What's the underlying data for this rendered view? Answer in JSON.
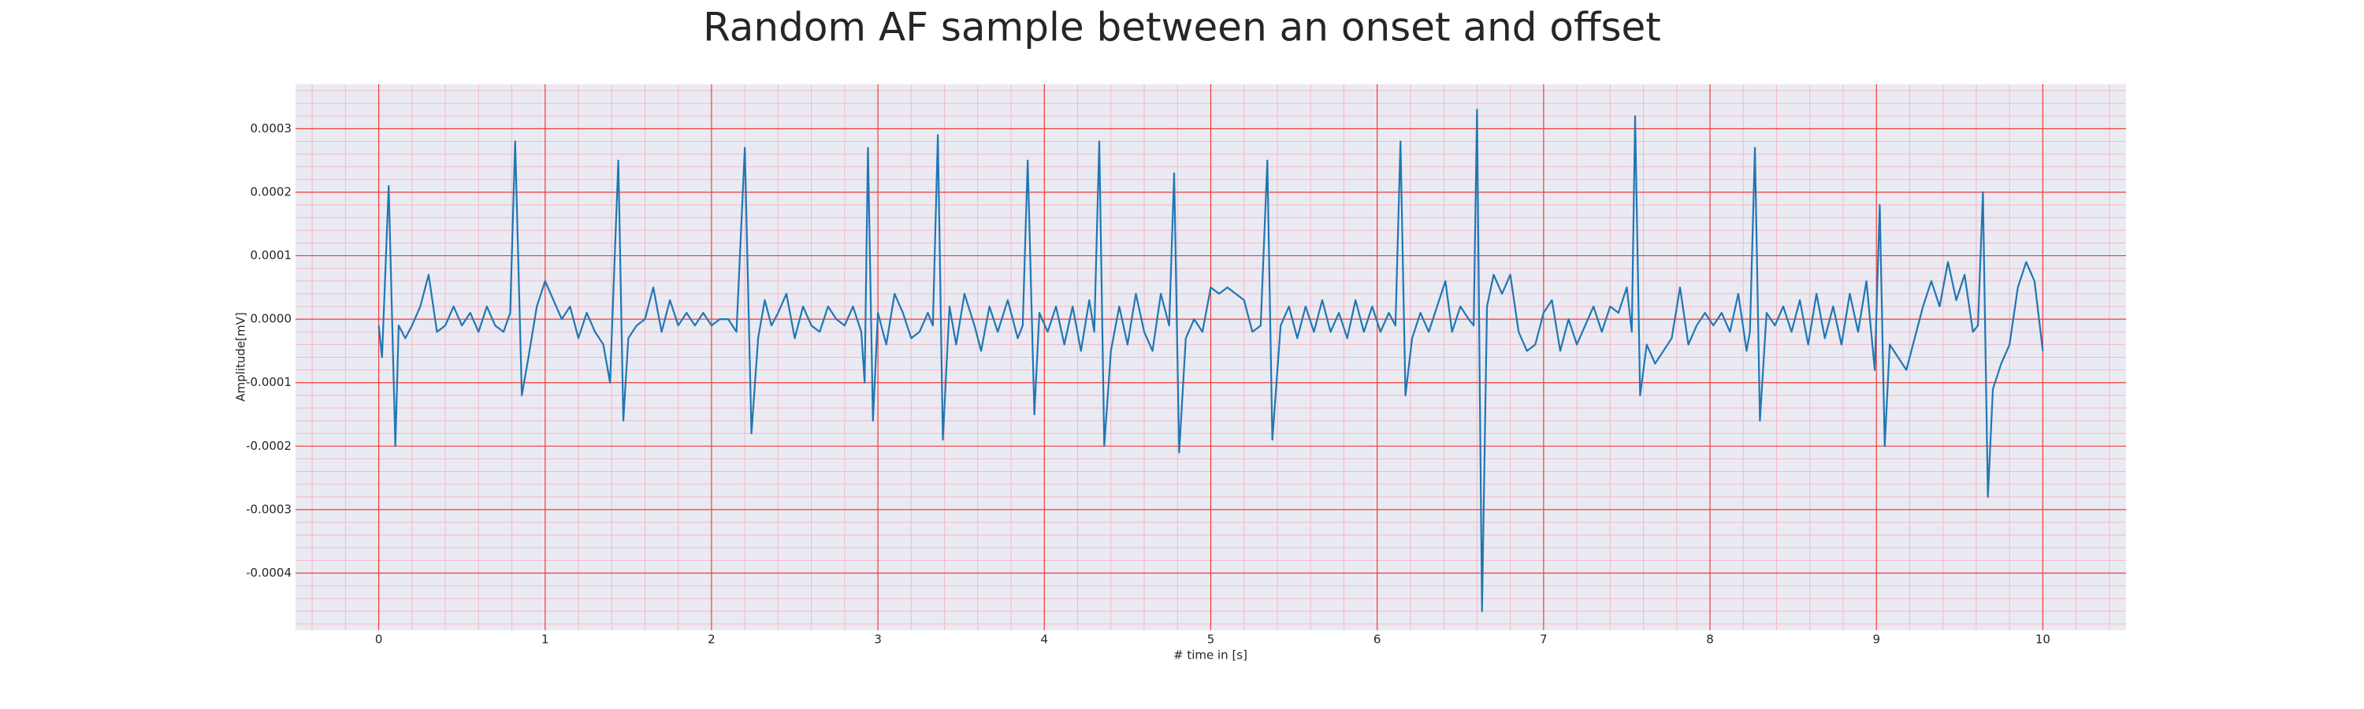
{
  "chart_data": {
    "type": "line",
    "title": "Random AF sample between an onset and offset",
    "xlabel": "# time in [s]",
    "ylabel": "Amplitude[mV]",
    "xlim": [
      -0.5,
      10.5
    ],
    "ylim": [
      -0.00049,
      0.00037
    ],
    "xticks": [
      0,
      1,
      2,
      3,
      4,
      5,
      6,
      7,
      8,
      9,
      10
    ],
    "yticks": [
      -0.0004,
      -0.0003,
      -0.0002,
      -0.0001,
      {
        "value": 0,
        "label": "0.0000"
      },
      0.0001,
      0.0002,
      0.0003
    ],
    "grid": true,
    "series": [
      {
        "color": "#1f77b4",
        "x": [
          0.0,
          0.02,
          0.06,
          0.1,
          0.12,
          0.16,
          0.2,
          0.25,
          0.3,
          0.35,
          0.4,
          0.45,
          0.5,
          0.55,
          0.6,
          0.65,
          0.7,
          0.75,
          0.79,
          0.82,
          0.86,
          0.9,
          0.95,
          1.0,
          1.05,
          1.1,
          1.15,
          1.2,
          1.25,
          1.3,
          1.35,
          1.39,
          1.44,
          1.47,
          1.5,
          1.55,
          1.6,
          1.65,
          1.7,
          1.75,
          1.8,
          1.85,
          1.9,
          1.95,
          2.0,
          2.05,
          2.1,
          2.15,
          2.2,
          2.24,
          2.28,
          2.32,
          2.36,
          2.4,
          2.45,
          2.5,
          2.55,
          2.6,
          2.65,
          2.7,
          2.75,
          2.8,
          2.85,
          2.9,
          2.92,
          2.94,
          2.97,
          3.0,
          3.05,
          3.1,
          3.15,
          3.2,
          3.25,
          3.3,
          3.33,
          3.36,
          3.39,
          3.43,
          3.47,
          3.52,
          3.58,
          3.62,
          3.67,
          3.72,
          3.78,
          3.84,
          3.87,
          3.9,
          3.94,
          3.97,
          4.02,
          4.07,
          4.12,
          4.17,
          4.22,
          4.27,
          4.3,
          4.33,
          4.36,
          4.4,
          4.45,
          4.5,
          4.55,
          4.6,
          4.65,
          4.7,
          4.75,
          4.78,
          4.81,
          4.85,
          4.9,
          4.95,
          5.0,
          5.05,
          5.1,
          5.15,
          5.2,
          5.25,
          5.3,
          5.34,
          5.37,
          5.42,
          5.47,
          5.52,
          5.57,
          5.62,
          5.67,
          5.72,
          5.77,
          5.82,
          5.87,
          5.92,
          5.97,
          6.02,
          6.07,
          6.11,
          6.14,
          6.17,
          6.21,
          6.26,
          6.31,
          6.36,
          6.41,
          6.45,
          6.5,
          6.55,
          6.58,
          6.6,
          6.63,
          6.66,
          6.7,
          6.75,
          6.8,
          6.85,
          6.9,
          6.95,
          7.0,
          7.05,
          7.1,
          7.15,
          7.2,
          7.25,
          7.3,
          7.35,
          7.4,
          7.45,
          7.5,
          7.53,
          7.55,
          7.58,
          7.62,
          7.67,
          7.72,
          7.77,
          7.82,
          7.87,
          7.92,
          7.97,
          8.02,
          8.07,
          8.12,
          8.17,
          8.22,
          8.24,
          8.27,
          8.3,
          8.34,
          8.39,
          8.44,
          8.49,
          8.54,
          8.59,
          8.64,
          8.69,
          8.74,
          8.79,
          8.84,
          8.89,
          8.94,
          8.99,
          9.02,
          9.05,
          9.08,
          9.13,
          9.18,
          9.23,
          9.28,
          9.33,
          9.38,
          9.43,
          9.48,
          9.53,
          9.58,
          9.61,
          9.64,
          9.67,
          9.7,
          9.75,
          9.8,
          9.85,
          9.9,
          9.95,
          10.0
        ],
        "values": [
          -1e-05,
          -6e-05,
          0.00021,
          -0.0002,
          -1e-05,
          -3e-05,
          -1e-05,
          2e-05,
          7e-05,
          -2e-05,
          -1e-05,
          2e-05,
          -1e-05,
          1e-05,
          -2e-05,
          2e-05,
          -1e-05,
          -2e-05,
          1e-05,
          0.00028,
          -0.00012,
          -6e-05,
          2e-05,
          6e-05,
          3e-05,
          0,
          2e-05,
          -3e-05,
          1e-05,
          -2e-05,
          -4e-05,
          -0.0001,
          0.00025,
          -0.00016,
          -3e-05,
          -1e-05,
          0,
          5e-05,
          -2e-05,
          3e-05,
          -1e-05,
          1e-05,
          -1e-05,
          1e-05,
          -1e-05,
          0,
          0,
          -2e-05,
          0.00027,
          -0.00018,
          -3e-05,
          3e-05,
          -1e-05,
          1e-05,
          4e-05,
          -3e-05,
          2e-05,
          -1e-05,
          -2e-05,
          2e-05,
          0,
          -1e-05,
          2e-05,
          -2e-05,
          -0.0001,
          0.00027,
          -0.00016,
          1e-05,
          -4e-05,
          4e-05,
          1e-05,
          -3e-05,
          -2e-05,
          1e-05,
          -1e-05,
          0.00029,
          -0.00019,
          2e-05,
          -4e-05,
          4e-05,
          -1e-05,
          -5e-05,
          2e-05,
          -2e-05,
          3e-05,
          -3e-05,
          -1e-05,
          0.00025,
          -0.00015,
          1e-05,
          -2e-05,
          2e-05,
          -4e-05,
          2e-05,
          -5e-05,
          3e-05,
          -2e-05,
          0.00028,
          -0.0002,
          -5e-05,
          2e-05,
          -4e-05,
          4e-05,
          -2e-05,
          -5e-05,
          4e-05,
          -1e-05,
          0.00023,
          -0.00021,
          -3e-05,
          0,
          -2e-05,
          5e-05,
          4e-05,
          5e-05,
          4e-05,
          3e-05,
          -2e-05,
          -1e-05,
          0.00025,
          -0.00019,
          -1e-05,
          2e-05,
          -3e-05,
          2e-05,
          -2e-05,
          3e-05,
          -2e-05,
          1e-05,
          -3e-05,
          3e-05,
          -2e-05,
          2e-05,
          -2e-05,
          1e-05,
          -1e-05,
          0.00028,
          -0.00012,
          -3e-05,
          1e-05,
          -2e-05,
          2e-05,
          6e-05,
          -2e-05,
          2e-05,
          0,
          -1e-05,
          0.00033,
          -0.00046,
          2e-05,
          7e-05,
          4e-05,
          7e-05,
          -2e-05,
          -5e-05,
          -4e-05,
          1e-05,
          3e-05,
          -5e-05,
          0,
          -4e-05,
          -1e-05,
          2e-05,
          -2e-05,
          2e-05,
          1e-05,
          5e-05,
          -2e-05,
          0.00032,
          -0.00012,
          -4e-05,
          -7e-05,
          -5e-05,
          -3e-05,
          5e-05,
          -4e-05,
          -1e-05,
          1e-05,
          -1e-05,
          1e-05,
          -2e-05,
          4e-05,
          -5e-05,
          -2e-05,
          0.00027,
          -0.00016,
          1e-05,
          -1e-05,
          2e-05,
          -2e-05,
          3e-05,
          -4e-05,
          4e-05,
          -3e-05,
          2e-05,
          -4e-05,
          4e-05,
          -2e-05,
          6e-05,
          -8e-05,
          0.00018,
          -0.0002,
          -4e-05,
          -6e-05,
          -8e-05,
          -3e-05,
          2e-05,
          6e-05,
          2e-05,
          9e-05,
          3e-05,
          7e-05,
          -2e-05,
          -1e-05,
          0.0002,
          -0.00028,
          -0.00011,
          -7e-05,
          -4e-05,
          5e-05,
          9e-05,
          6e-05,
          -5e-05
        ]
      }
    ]
  }
}
